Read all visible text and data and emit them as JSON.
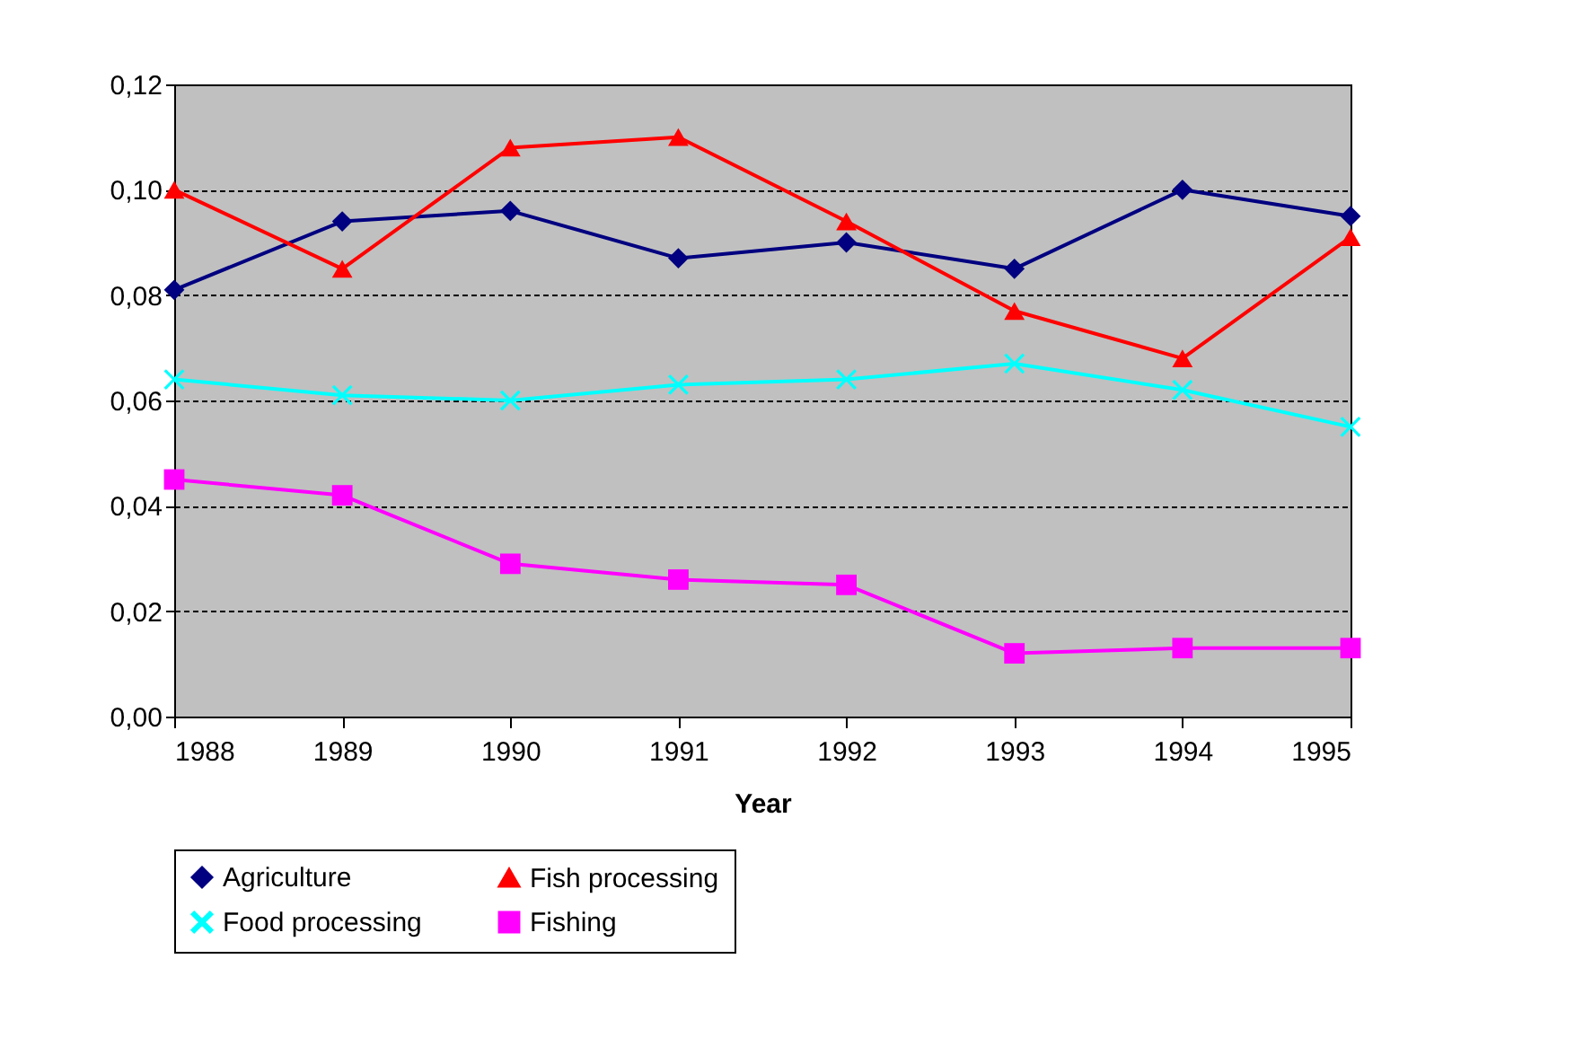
{
  "chart_data": {
    "type": "line",
    "xlabel": "Year",
    "categories": [
      "1988",
      "1989",
      "1990",
      "1991",
      "1992",
      "1993",
      "1994",
      "1995"
    ],
    "series": [
      {
        "name": "Agriculture",
        "color": "#000080",
        "marker": "diamond",
        "values": [
          0.081,
          0.094,
          0.096,
          0.087,
          0.09,
          0.085,
          0.1,
          0.095
        ]
      },
      {
        "name": "Fish processing",
        "color": "#ff0000",
        "marker": "triangle",
        "values": [
          0.1,
          0.085,
          0.108,
          0.11,
          0.094,
          0.077,
          0.068,
          0.091
        ]
      },
      {
        "name": "Food processing",
        "color": "#00ffff",
        "marker": "cross",
        "values": [
          0.064,
          0.061,
          0.06,
          0.063,
          0.064,
          0.067,
          0.062,
          0.055
        ]
      },
      {
        "name": "Fishing",
        "color": "#ff00ff",
        "marker": "square",
        "values": [
          0.045,
          0.042,
          0.029,
          0.026,
          0.025,
          0.012,
          0.013,
          0.013
        ]
      }
    ],
    "ylim": [
      0,
      0.12
    ],
    "yticks": [
      {
        "value": 0,
        "label": "0,00"
      },
      {
        "value": 0.02,
        "label": "0,02"
      },
      {
        "value": 0.04,
        "label": "0,04"
      },
      {
        "value": 0.06,
        "label": "0,06"
      },
      {
        "value": 0.08,
        "label": "0,08"
      },
      {
        "value": 0.1,
        "label": "0,10"
      },
      {
        "value": 0.12,
        "label": "0,12"
      }
    ],
    "grid": "y",
    "legend": "bottom",
    "line_style": "solid"
  }
}
